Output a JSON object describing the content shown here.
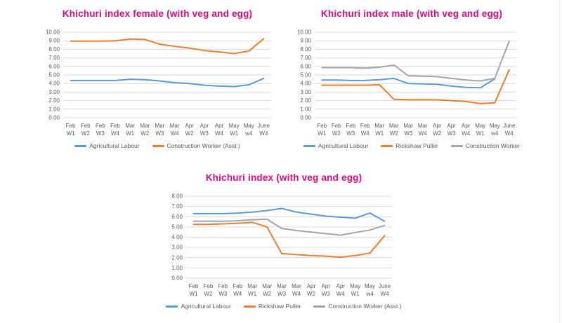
{
  "palette": {
    "title_pink": "#E2077D",
    "axis_text": "#595959",
    "gridline": "#D9D9D9",
    "series_blue": "#5B9BD5",
    "series_orange": "#ED7D31",
    "series_gray": "#A5A5A5"
  },
  "chart_data": [
    {
      "type": "line",
      "title": "Khichuri index female (with veg and egg)",
      "categories": [
        "Feb W1",
        "Feb W2",
        "Feb W3",
        "Feb W4",
        "Mar W1",
        "Mar W2",
        "Mar W3",
        "Mar W4",
        "Apr W2",
        "Apr W3",
        "Apr W4",
        "May W1",
        "May w4",
        "June W4"
      ],
      "ylim": [
        0,
        10
      ],
      "ytick_step": 1,
      "grid": true,
      "legend_position": "bottom",
      "series": [
        {
          "name": "Agricultural Labour",
          "color": "#5B9BD5",
          "values": [
            4.35,
            4.35,
            4.35,
            4.35,
            4.5,
            4.45,
            4.3,
            4.1,
            4.0,
            3.8,
            3.7,
            3.65,
            3.85,
            4.6
          ]
        },
        {
          "name": "Construction Worker (Asst.)",
          "color": "#ED7D31",
          "values": [
            8.95,
            8.95,
            8.95,
            9.0,
            9.2,
            9.15,
            8.6,
            8.35,
            8.15,
            7.85,
            7.7,
            7.5,
            7.8,
            9.25
          ]
        }
      ]
    },
    {
      "type": "line",
      "title": "Khichuri index male (with veg and egg)",
      "categories": [
        "Feb W1",
        "Feb W2",
        "Feb W3",
        "Feb W4",
        "Mar W1",
        "Mar W2",
        "Mar W3",
        "Mar W4",
        "Apr W2",
        "Apr W3",
        "Apr W4",
        "May W1",
        "May w4",
        "June W4"
      ],
      "ylim": [
        0,
        10
      ],
      "ytick_step": 1,
      "grid": true,
      "legend_position": "bottom",
      "series": [
        {
          "name": "Agricultural Labour",
          "color": "#5B9BD5",
          "values": [
            4.4,
            4.4,
            4.35,
            4.35,
            4.45,
            4.6,
            4.0,
            3.95,
            3.9,
            3.7,
            3.55,
            3.5,
            4.55,
            null
          ]
        },
        {
          "name": "Rickshaw Puller",
          "color": "#ED7D31",
          "values": [
            3.8,
            3.8,
            3.8,
            3.8,
            3.85,
            2.15,
            2.1,
            2.1,
            2.1,
            2.0,
            1.9,
            1.65,
            1.75,
            5.6
          ]
        },
        {
          "name": "Construction Worker",
          "color": "#A5A5A5",
          "values": [
            5.85,
            5.85,
            5.85,
            5.8,
            5.9,
            6.15,
            4.9,
            4.85,
            4.8,
            4.6,
            4.4,
            4.3,
            4.6,
            8.95
          ]
        }
      ]
    },
    {
      "type": "line",
      "title": "Khichuri index (with veg and egg)",
      "categories": [
        "Feb W1",
        "Feb W2",
        "Feb W3",
        "Feb W4",
        "Mar W1",
        "Mar W2",
        "Mar W3",
        "Mar W4",
        "Apr W2",
        "Apr W3",
        "Apr W4",
        "May W1",
        "May w4",
        "June W4"
      ],
      "ylim": [
        0,
        8
      ],
      "ytick_step": 1,
      "grid": true,
      "legend_position": "bottom",
      "series": [
        {
          "name": "Agricultural Labour",
          "color": "#5B9BD5",
          "values": [
            6.3,
            6.3,
            6.3,
            6.35,
            6.45,
            6.6,
            6.8,
            6.45,
            6.25,
            6.05,
            5.95,
            5.85,
            6.35,
            5.55
          ]
        },
        {
          "name": "Rickshaw Puller",
          "color": "#ED7D31",
          "values": [
            5.25,
            5.25,
            5.3,
            5.35,
            5.45,
            5.0,
            2.4,
            2.3,
            2.2,
            2.15,
            2.05,
            2.2,
            2.45,
            4.15
          ]
        },
        {
          "name": "Construction Worker (Asst.)",
          "color": "#A5A5A5",
          "values": [
            5.55,
            5.55,
            5.55,
            5.6,
            5.7,
            5.75,
            4.85,
            4.65,
            4.5,
            4.35,
            4.2,
            4.45,
            4.7,
            5.15
          ]
        }
      ]
    }
  ]
}
